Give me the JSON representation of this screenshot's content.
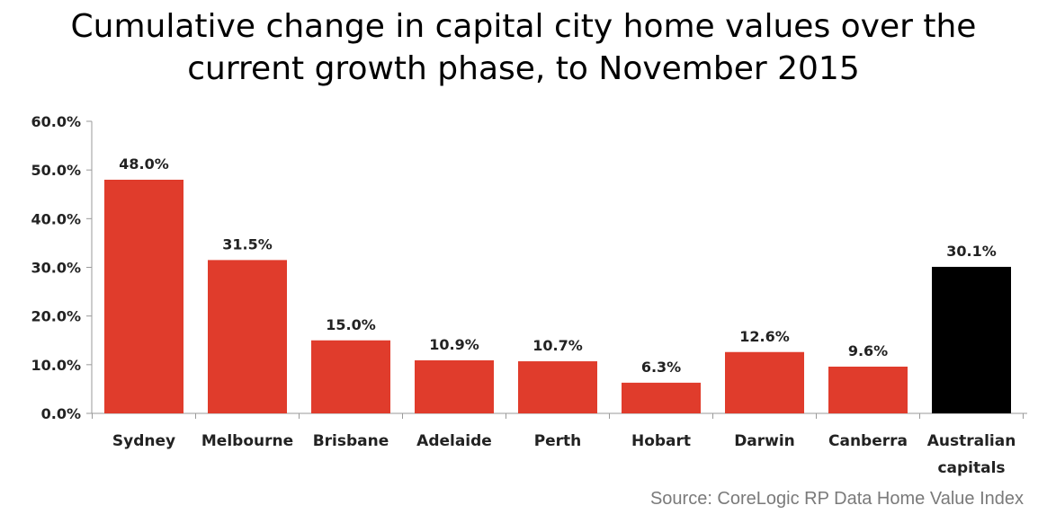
{
  "chart_data": {
    "type": "bar",
    "title": "Cumulative change in capital city home values over the current growth phase, to November 2015",
    "title_lines": [
      "Cumulative change in capital city home values over the",
      "current growth phase, to November 2015"
    ],
    "categories": [
      [
        "Sydney"
      ],
      [
        "Melbourne"
      ],
      [
        "Brisbane"
      ],
      [
        "Adelaide"
      ],
      [
        "Perth"
      ],
      [
        "Hobart"
      ],
      [
        "Darwin"
      ],
      [
        "Canberra"
      ],
      [
        "Australian",
        "capitals"
      ]
    ],
    "values": [
      48.0,
      31.5,
      15.0,
      10.9,
      10.7,
      6.3,
      12.6,
      9.6,
      30.1
    ],
    "data_labels": [
      "48.0%",
      "31.5%",
      "15.0%",
      "10.9%",
      "10.7%",
      "6.3%",
      "12.6%",
      "9.6%",
      "30.1%"
    ],
    "bar_colors": [
      "#e03c2c",
      "#e03c2c",
      "#e03c2c",
      "#e03c2c",
      "#e03c2c",
      "#e03c2c",
      "#e03c2c",
      "#e03c2c",
      "#000000"
    ],
    "ylim": [
      0,
      60
    ],
    "yticks": [
      0,
      10,
      20,
      30,
      40,
      50,
      60
    ],
    "ytick_labels": [
      "0.0%",
      "10.0%",
      "20.0%",
      "30.0%",
      "40.0%",
      "50.0%",
      "60.0%"
    ],
    "xlabel": "",
    "ylabel": "",
    "grid": false,
    "legend": "none"
  },
  "source": "Source: CoreLogic RP Data Home Value Index"
}
